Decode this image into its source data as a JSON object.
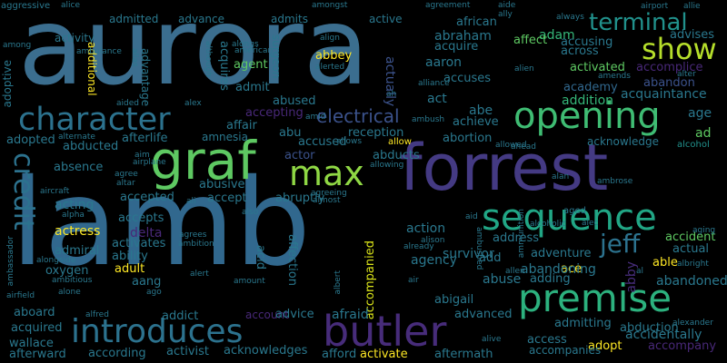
{
  "words": [
    {
      "t": "aurora",
      "c": "#3b6e8f"
    },
    {
      "t": "lamb",
      "c": "#31688e"
    },
    {
      "t": "forrest",
      "c": "#443a83"
    },
    {
      "t": "graf",
      "c": "#5ec962"
    },
    {
      "t": "max",
      "c": "#8fd744"
    },
    {
      "t": "opening",
      "c": "#3fbc73"
    },
    {
      "t": "character",
      "c": "#2c728e"
    },
    {
      "t": "sequence",
      "c": "#21a685"
    },
    {
      "t": "premise",
      "c": "#2cb17e"
    },
    {
      "t": "butler",
      "c": "#472c7a"
    },
    {
      "t": "introduces",
      "c": "#2c728e"
    },
    {
      "t": "credit",
      "c": "#2c728e"
    },
    {
      "t": "terminal",
      "c": "#21918c"
    },
    {
      "t": "show",
      "c": "#b5de2b"
    },
    {
      "t": "jeff",
      "c": "#2c728e"
    },
    {
      "t": "electrical",
      "c": "#3b528b"
    },
    {
      "t": "abby",
      "c": "#472d7b"
    },
    {
      "t": "adopt",
      "c": "#fde725"
    },
    {
      "t": "activate",
      "c": "#fde725"
    },
    {
      "t": "abbey",
      "c": "#fde725"
    },
    {
      "t": "accompanied",
      "c": "#d8e219"
    },
    {
      "t": "able",
      "c": "#fde725"
    },
    {
      "t": "ace",
      "c": "#fde725"
    },
    {
      "t": "actress",
      "c": "#fde725"
    },
    {
      "t": "adult",
      "c": "#fde725"
    },
    {
      "t": "actually",
      "c": "#3b528b"
    },
    {
      "t": "acquire",
      "c": "#2a788e"
    },
    {
      "t": "acquires",
      "c": "#2a788e"
    },
    {
      "t": "adam",
      "c": "#35b779"
    },
    {
      "t": "abraham",
      "c": "#2a788e"
    },
    {
      "t": "aaron",
      "c": "#2a788e"
    },
    {
      "t": "affect",
      "c": "#5ec962"
    },
    {
      "t": "accusing",
      "c": "#2a788e"
    },
    {
      "t": "across",
      "c": "#2a788e"
    },
    {
      "t": "advises",
      "c": "#2a788e"
    },
    {
      "t": "acquaintance",
      "c": "#2a788e"
    },
    {
      "t": "activated",
      "c": "#5ec962"
    },
    {
      "t": "accomplice",
      "c": "#482878"
    },
    {
      "t": "academy",
      "c": "#31688e"
    },
    {
      "t": "abandon",
      "c": "#3b528b"
    },
    {
      "t": "addition",
      "c": "#35b779"
    },
    {
      "t": "age",
      "c": "#2a788e"
    },
    {
      "t": "ad",
      "c": "#5ec962"
    },
    {
      "t": "acknowledge",
      "c": "#2a788e"
    },
    {
      "t": "alcohol",
      "c": "#21918c"
    },
    {
      "t": "abortion",
      "c": "#2a788e"
    },
    {
      "t": "achieve",
      "c": "#2a788e"
    },
    {
      "t": "abe",
      "c": "#2a788e"
    },
    {
      "t": "reception",
      "c": "#2a788e"
    },
    {
      "t": "abducts",
      "c": "#2a788e"
    },
    {
      "t": "allow",
      "c": "#fde725"
    },
    {
      "t": "accused",
      "c": "#2a788e"
    },
    {
      "t": "abu",
      "c": "#2a788e"
    },
    {
      "t": "actor",
      "c": "#3b528b"
    },
    {
      "t": "abused",
      "c": "#2a788e"
    },
    {
      "t": "accepting",
      "c": "#482878"
    },
    {
      "t": "act",
      "c": "#2a788e"
    },
    {
      "t": "accuses",
      "c": "#2a788e"
    },
    {
      "t": "admit",
      "c": "#2a788e"
    },
    {
      "t": "agent",
      "c": "#5ec962"
    },
    {
      "t": "affair",
      "c": "#2a788e"
    },
    {
      "t": "afterlife",
      "c": "#2a788e"
    },
    {
      "t": "amnesia",
      "c": "#2a788e"
    },
    {
      "t": "abducted",
      "c": "#2a788e"
    },
    {
      "t": "adopted",
      "c": "#2a788e"
    },
    {
      "t": "absence",
      "c": "#2a788e"
    },
    {
      "t": "abusive",
      "c": "#2a788e"
    },
    {
      "t": "accept",
      "c": "#2a788e"
    },
    {
      "t": "accepted",
      "c": "#2a788e"
    },
    {
      "t": "abruptly",
      "c": "#2a788e"
    },
    {
      "t": "action",
      "c": "#2a788e"
    },
    {
      "t": "acting",
      "c": "#2a788e"
    },
    {
      "t": "accepts",
      "c": "#2a788e"
    },
    {
      "t": "delta",
      "c": "#482878"
    },
    {
      "t": "activates",
      "c": "#2a788e"
    },
    {
      "t": "ability",
      "c": "#2a788e"
    },
    {
      "t": "admiral",
      "c": "#2a788e"
    },
    {
      "t": "oxygen",
      "c": "#2a788e"
    },
    {
      "t": "aang",
      "c": "#2a788e"
    },
    {
      "t": "acid",
      "c": "#2a788e"
    },
    {
      "t": "affection",
      "c": "#2a788e"
    },
    {
      "t": "agency",
      "c": "#2a788e"
    },
    {
      "t": "survivor",
      "c": "#2a788e"
    },
    {
      "t": "address",
      "c": "#2a788e"
    },
    {
      "t": "adventure",
      "c": "#2a788e"
    },
    {
      "t": "abandoning",
      "c": "#2a788e"
    },
    {
      "t": "accident",
      "c": "#5ec962"
    },
    {
      "t": "actual",
      "c": "#2a788e"
    },
    {
      "t": "add",
      "c": "#2a788e"
    },
    {
      "t": "abuse",
      "c": "#2a788e"
    },
    {
      "t": "adding",
      "c": "#2a788e"
    },
    {
      "t": "abandoned",
      "c": "#2a788e"
    },
    {
      "t": "abigail",
      "c": "#2a788e"
    },
    {
      "t": "advanced",
      "c": "#2a788e"
    },
    {
      "t": "addict",
      "c": "#2a788e"
    },
    {
      "t": "account",
      "c": "#482878"
    },
    {
      "t": "advice",
      "c": "#2a788e"
    },
    {
      "t": "afraid",
      "c": "#2a788e"
    },
    {
      "t": "access",
      "c": "#2a788e"
    },
    {
      "t": "admitting",
      "c": "#2a788e"
    },
    {
      "t": "abduction",
      "c": "#2a788e"
    },
    {
      "t": "accidentally",
      "c": "#2a788e"
    },
    {
      "t": "accompany",
      "c": "#482878"
    },
    {
      "t": "accompanies",
      "c": "#2a788e"
    },
    {
      "t": "aftermath",
      "c": "#2a788e"
    },
    {
      "t": "afford",
      "c": "#2a788e"
    },
    {
      "t": "acknowledges",
      "c": "#2a788e"
    },
    {
      "t": "activist",
      "c": "#2a788e"
    },
    {
      "t": "according",
      "c": "#2a788e"
    },
    {
      "t": "afterward",
      "c": "#2a788e"
    },
    {
      "t": "wallace",
      "c": "#2a788e"
    },
    {
      "t": "acquired",
      "c": "#2a788e"
    },
    {
      "t": "aboard",
      "c": "#2a788e"
    },
    {
      "t": "admitted",
      "c": "#2a788e"
    },
    {
      "t": "advance",
      "c": "#2a788e"
    },
    {
      "t": "admits",
      "c": "#2a788e"
    },
    {
      "t": "active",
      "c": "#2a788e"
    },
    {
      "t": "african",
      "c": "#2a788e"
    },
    {
      "t": "activity",
      "c": "#2a788e"
    },
    {
      "t": "additional",
      "c": "#fde725"
    },
    {
      "t": "advantage",
      "c": "#2a788e"
    },
    {
      "t": "surgeon",
      "c": "#2a788e"
    },
    {
      "t": "adoptive",
      "c": "#2a788e"
    },
    {
      "t": "aggressive",
      "c": "#2a788e"
    },
    {
      "t": "alice",
      "c": "#2a788e"
    },
    {
      "t": "agreement",
      "c": "#2a788e"
    },
    {
      "t": "aide",
      "c": "#2a788e"
    },
    {
      "t": "airport",
      "c": "#2a788e"
    },
    {
      "t": "allie",
      "c": "#2a788e"
    },
    {
      "t": "always",
      "c": "#2a788e"
    },
    {
      "t": "ally",
      "c": "#2a788e"
    },
    {
      "t": "align",
      "c": "#2a788e"
    },
    {
      "t": "alien",
      "c": "#2a788e"
    },
    {
      "t": "alter",
      "c": "#2a788e"
    },
    {
      "t": "amends",
      "c": "#2a788e"
    },
    {
      "t": "ah",
      "c": "#2a788e"
    },
    {
      "t": "alliance",
      "c": "#2a788e"
    },
    {
      "t": "ambush",
      "c": "#2a788e"
    },
    {
      "t": "amid",
      "c": "#2a788e"
    },
    {
      "t": "alex",
      "c": "#2a788e"
    },
    {
      "t": "aided",
      "c": "#2a788e"
    },
    {
      "t": "aim",
      "c": "#2a788e"
    },
    {
      "t": "airplane",
      "c": "#2a788e"
    },
    {
      "t": "aircraft",
      "c": "#2a788e"
    },
    {
      "t": "agree",
      "c": "#2a788e"
    },
    {
      "t": "altar",
      "c": "#2a788e"
    },
    {
      "t": "ali",
      "c": "#2a788e"
    },
    {
      "t": "alpha",
      "c": "#2a788e"
    },
    {
      "t": "agrees",
      "c": "#2a788e"
    },
    {
      "t": "ambition",
      "c": "#2a788e"
    },
    {
      "t": "also",
      "c": "#2a788e"
    },
    {
      "t": "alongside",
      "c": "#2a788e"
    },
    {
      "t": "ambitious",
      "c": "#2a788e"
    },
    {
      "t": "airfield",
      "c": "#2a788e"
    },
    {
      "t": "alone",
      "c": "#2a788e"
    },
    {
      "t": "alfred",
      "c": "#2a788e"
    },
    {
      "t": "ago",
      "c": "#2a788e"
    },
    {
      "t": "alert",
      "c": "#2a788e"
    },
    {
      "t": "almost",
      "c": "#2a788e"
    },
    {
      "t": "allows",
      "c": "#2a788e"
    },
    {
      "t": "allowing",
      "c": "#2a788e"
    },
    {
      "t": "agreeing",
      "c": "#2a788e"
    },
    {
      "t": "allowed",
      "c": "#2a788e"
    },
    {
      "t": "ahead",
      "c": "#2a788e"
    },
    {
      "t": "alan",
      "c": "#2a788e"
    },
    {
      "t": "ambrose",
      "c": "#2a788e"
    },
    {
      "t": "alec",
      "c": "#2a788e"
    },
    {
      "t": "aged",
      "c": "#2a788e"
    },
    {
      "t": "aging",
      "c": "#2a788e"
    },
    {
      "t": "alcoholic",
      "c": "#2a788e"
    },
    {
      "t": "alison",
      "c": "#2a788e"
    },
    {
      "t": "already",
      "c": "#2a788e"
    },
    {
      "t": "air",
      "c": "#2a788e"
    },
    {
      "t": "allen",
      "c": "#2a788e"
    },
    {
      "t": "al",
      "c": "#2a788e"
    },
    {
      "t": "albright",
      "c": "#2a788e"
    },
    {
      "t": "alexander",
      "c": "#2a788e"
    },
    {
      "t": "alive",
      "c": "#2a788e"
    },
    {
      "t": "alerted",
      "c": "#2a788e"
    },
    {
      "t": "amongst",
      "c": "#2a788e"
    },
    {
      "t": "among",
      "c": "#2a788e"
    },
    {
      "t": "ambulance",
      "c": "#2a788e"
    },
    {
      "t": "alias",
      "c": "#2a788e"
    },
    {
      "t": "although",
      "c": "#2a788e"
    },
    {
      "t": "alongs",
      "c": "#2a788e"
    },
    {
      "t": "american",
      "c": "#2a788e"
    },
    {
      "t": "alternate",
      "c": "#2a788e"
    },
    {
      "t": "ambassador",
      "c": "#2a788e"
    },
    {
      "t": "albert",
      "c": "#2a788e"
    },
    {
      "t": "ambushed",
      "c": "#2a788e"
    },
    {
      "t": "ammunition",
      "c": "#2a788e"
    },
    {
      "t": "aid",
      "c": "#2a788e"
    },
    {
      "t": "amount",
      "c": "#2a788e"
    }
  ]
}
